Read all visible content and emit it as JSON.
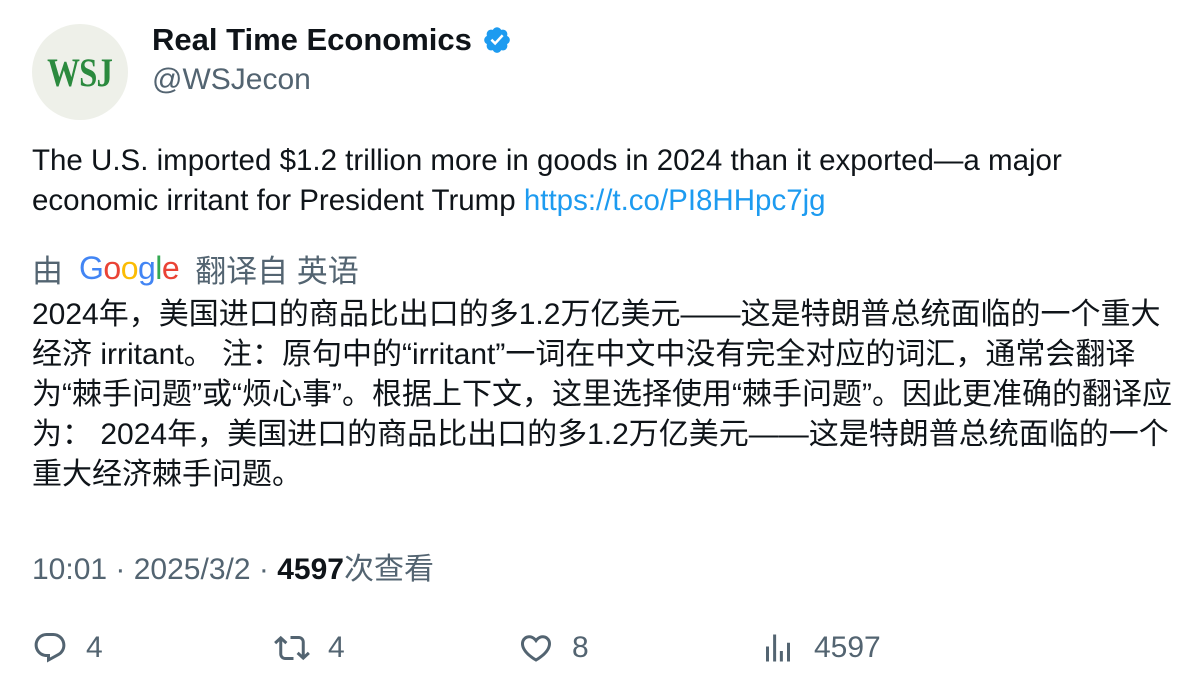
{
  "author": {
    "name": "Real Time Economics",
    "handle": "@WSJecon",
    "avatar_text": "WSJ",
    "verified": true
  },
  "tweet": {
    "text": "The U.S. imported $1.2 trillion more in goods in 2024 than it exported—a major economic irritant for President Trump ",
    "link": "https://t.co/PI8HHpc7jg"
  },
  "translation": {
    "prefix": "由",
    "google_letters": [
      "G",
      "o",
      "o",
      "g",
      "l",
      "e"
    ],
    "suffix": "翻译自 英语",
    "text": "2024年，美国进口的商品比出口的多1.2万亿美元——这是特朗普总统面临的一个重大经济 irritant。 注：原句中的“irritant”一词在中文中没有完全对应的词汇，通常会翻译为“棘手问题”或“烦心事”。根据上下文，这里选择使用“棘手问题”。因此更准确的翻译应为： 2024年，美国进口的商品比出口的多1.2万亿美元——这是特朗普总统面临的一个重大经济棘手问题。"
  },
  "meta": {
    "time": "10:01",
    "date": "2025/3/2",
    "views": "4597",
    "views_label": "次查看",
    "separator": " · "
  },
  "actions": {
    "replies": "4",
    "reposts": "4",
    "likes": "8",
    "views": "4597"
  },
  "colors": {
    "link": "#1d9bf0",
    "muted": "#536471",
    "verified": "#1d9bf0",
    "avatar_text": "#2b8a3e"
  }
}
